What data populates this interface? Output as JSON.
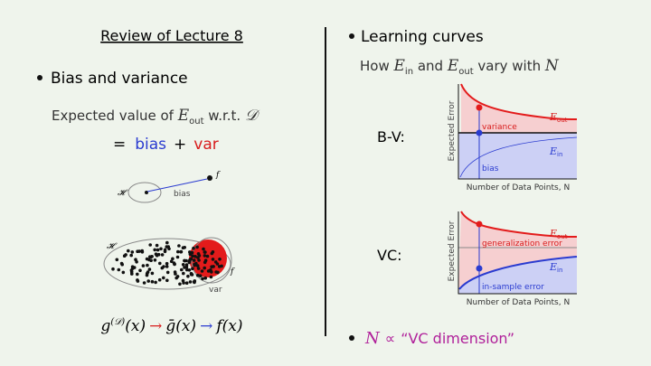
{
  "left": {
    "title": "Review of Lecture 8",
    "bullet": "Bias and variance",
    "expected": {
      "prefix": "Expected value of ",
      "symbol": "E",
      "sub": "out",
      "suffix": " w.r.t. ",
      "set": "𝒟"
    },
    "equation": {
      "eq": "=",
      "bias": "bias",
      "plus": "+",
      "var": "var"
    },
    "diagram_bias": {
      "hypothesis_set": "𝓗",
      "target": "f",
      "label": "bias"
    },
    "diagram_var": {
      "hypothesis_set": "𝓗",
      "target": "f",
      "label": "var"
    },
    "chain": {
      "g": "g",
      "g_sup": "(𝒟)",
      "g_arg": "(x)",
      "arrow1": "→",
      "gbar": "ḡ(x)",
      "arrow2": "→",
      "f": "f(x)"
    }
  },
  "right": {
    "bullet": "Learning curves",
    "subtitle": {
      "how": "How ",
      "e1": "E",
      "e1_sub": "in",
      "and": " and ",
      "e2": "E",
      "e2_sub": "out",
      "vary": " vary with ",
      "n": "N"
    },
    "bv": {
      "label": "B-V:",
      "y_axis": "Expected Error",
      "x_axis": "Number of Data Points, N",
      "eout": "E",
      "eout_sub": "out",
      "ein": "E",
      "ein_sub": "in",
      "upper_region": "variance",
      "lower_region": "bias"
    },
    "vc": {
      "label": "VC:",
      "y_axis": "Expected Error",
      "x_axis": "Number of Data Points, N",
      "eout": "E",
      "eout_sub": "out",
      "ein": "E",
      "ein_sub": "in",
      "upper_region": "generalization error",
      "lower_region": "in-sample error"
    },
    "final": {
      "n": "N",
      "prop": "∝",
      "text": "“VC dimension”"
    }
  }
}
